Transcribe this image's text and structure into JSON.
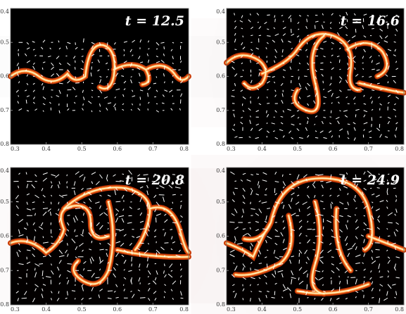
{
  "chart_data": [
    {
      "type": "image",
      "annotation": "t = 12.5",
      "xlim": [
        0.3,
        0.8
      ],
      "ylim": [
        0.8,
        0.4
      ],
      "xticks": [
        0.3,
        0.4,
        0.5,
        0.6,
        0.7,
        0.8
      ],
      "yticks": [
        0.4,
        0.5,
        0.6,
        0.7,
        0.8
      ]
    },
    {
      "type": "image",
      "annotation": "t = 16.6",
      "xlim": [
        0.3,
        0.8
      ],
      "ylim": [
        0.8,
        0.4
      ],
      "xticks": [
        0.3,
        0.4,
        0.5,
        0.6,
        0.7,
        0.8
      ],
      "yticks": [
        0.4,
        0.5,
        0.6,
        0.7,
        0.8
      ]
    },
    {
      "type": "image",
      "annotation": "t = 20.8",
      "xlim": [
        0.3,
        0.8
      ],
      "ylim": [
        0.8,
        0.4
      ],
      "xticks": [
        0.3,
        0.4,
        0.5,
        0.6,
        0.7,
        0.8
      ],
      "yticks": [
        0.4,
        0.5,
        0.6,
        0.7,
        0.8
      ]
    },
    {
      "type": "image",
      "annotation": "t = 24.9",
      "xlim": [
        0.3,
        0.8
      ],
      "ylim": [
        0.8,
        0.4
      ],
      "xticks": [
        0.3,
        0.4,
        0.5,
        0.6,
        0.7,
        0.8
      ],
      "yticks": [
        0.4,
        0.5,
        0.6,
        0.7,
        0.8
      ]
    }
  ]
}
